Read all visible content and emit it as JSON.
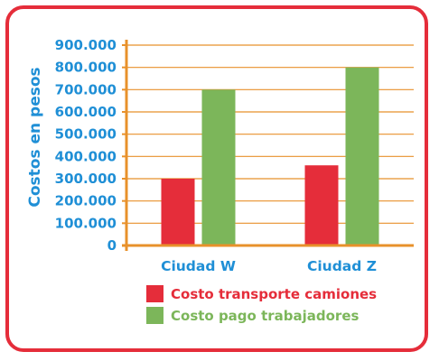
{
  "chart_data": {
    "type": "bar",
    "ylabel": "Costos en pesos",
    "categories": [
      "Ciudad W",
      "Ciudad Z"
    ],
    "series": [
      {
        "name": "Costo transporte camiones",
        "values": [
          300000,
          360000
        ],
        "color": "#e52d3a"
      },
      {
        "name": "Costo pago trabajadores",
        "values": [
          700000,
          800000
        ],
        "color": "#7cb65a"
      }
    ],
    "ylim": [
      0,
      900000
    ],
    "yticks": [
      0,
      100000,
      200000,
      300000,
      400000,
      500000,
      600000,
      700000,
      800000,
      900000
    ],
    "ytick_labels": [
      "0",
      "100.000",
      "200.000",
      "300.000",
      "400.000",
      "500.000",
      "600.000",
      "700.000",
      "800.000",
      "900.000"
    ],
    "grid": true,
    "legend": "bottom"
  },
  "colors": {
    "frame": "#e52d3a",
    "text": "#1f8fd6",
    "axis": "#e8912b",
    "grid": "#e8912b"
  }
}
